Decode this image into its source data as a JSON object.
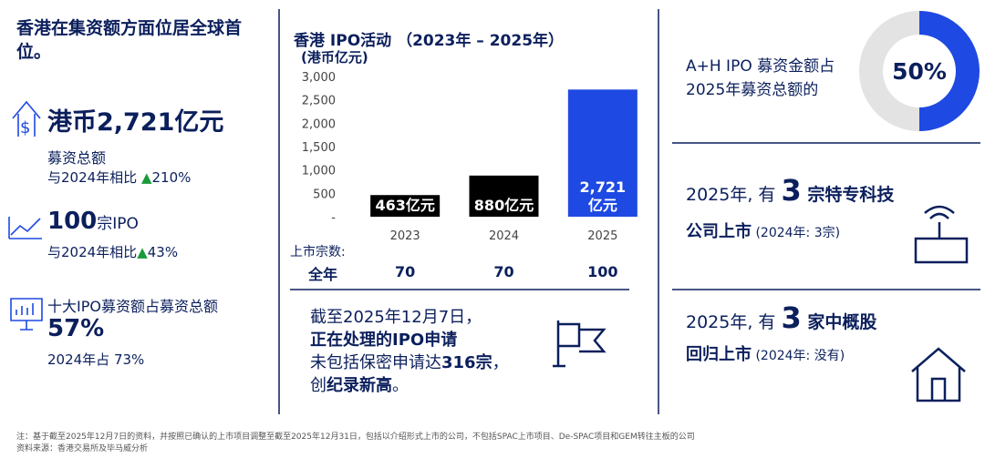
{
  "left": {
    "title": "香港在集资额方面位居全球首位。",
    "stat1": {
      "value": "港币2,721亿元",
      "label": "募资总额",
      "compare": "与2024年相比 ",
      "arrow": "▲",
      "change": "210%"
    },
    "stat2": {
      "value": "100",
      "unit": "宗IPO",
      "compare": "与2024年相比",
      "arrow": "▲",
      "change": "43%"
    },
    "stat3": {
      "label": "十大IPO募资额占募资总额",
      "value": "57%",
      "compare": "2024年占 73%"
    }
  },
  "chart_data": [
    {
      "type": "bar",
      "title": "香港 IPO活动 （2023年 – 2025年）",
      "subtitle": "(港币亿元)",
      "categories": [
        "2023",
        "2024",
        "2025"
      ],
      "values": [
        463,
        880,
        2721
      ],
      "value_labels": [
        "463亿元",
        "880亿元",
        "2,721\n亿元"
      ],
      "colors": [
        "#000000",
        "#000000",
        "#1e49e2"
      ],
      "ylim": [
        0,
        3000
      ],
      "yticks": [
        {
          "value": 0,
          "label": "-"
        },
        500,
        {
          "value": 1000,
          "label": "1,000"
        },
        {
          "value": 1500,
          "label": "1,500"
        },
        {
          "value": 2000,
          "label": "2,000"
        },
        {
          "value": 2500,
          "label": "2,500"
        },
        {
          "value": 3000,
          "label": "3,000"
        }
      ],
      "listing_label": "上市宗数:",
      "listing_row": "全年",
      "listing_counts": [
        70,
        70,
        100
      ]
    },
    {
      "type": "pie",
      "values": [
        50
      ],
      "value_labels": [
        "50%"
      ],
      "colors": [
        "#1e49e2"
      ],
      "rest_color": "#e3e3e3"
    }
  ],
  "pipeline": {
    "line1": "截至2025年12月7日，",
    "line2": "正在处理的IPO申请",
    "line3a": "未包括保密申请达",
    "line3b": "316宗",
    "line3c": "，",
    "line4a": "创",
    "line4b": "纪录新高",
    "line4c": "。"
  },
  "right": {
    "share": [
      "A+H IPO 募资金额占",
      "2025年募资总额的"
    ],
    "tech": {
      "a": "2025年, 有 ",
      "n": "3",
      "b": " 宗特专科技",
      "c": "公司上市",
      "d": " (2024年: 3宗)"
    },
    "china": {
      "a": "2025年, 有 ",
      "n": "3",
      "b": " 家中概股",
      "c": "回归上市",
      "d": " (2024年: 没有)"
    }
  },
  "footnotes": [
    "注：基于截至2025年12月7日的资料，并按照已确认的上市项目调整至截至2025年12月31日，包括以介绍形式上市的公司，不包括SPAC上市项目、De-SPAC项目和GEM转往主板的公司",
    "资料来源：香港交易所及毕马威分析"
  ]
}
